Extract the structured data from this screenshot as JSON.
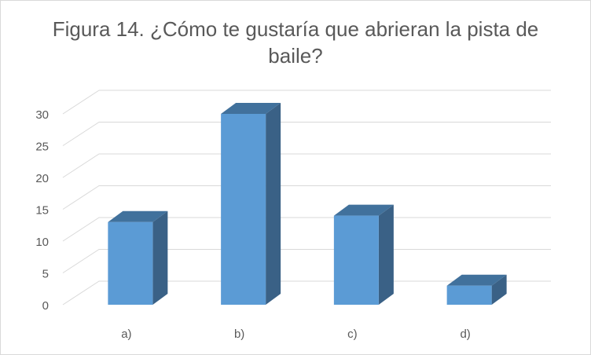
{
  "chart_data": {
    "type": "bar",
    "title": "Figura 14. ¿Cómo te gustaría que abrieran la pista de baile?",
    "categories": [
      "a)",
      "b)",
      "c)",
      "d)"
    ],
    "values": [
      13,
      30,
      14,
      3
    ],
    "ylim": [
      0,
      30
    ],
    "yticks": [
      "0",
      "5",
      "10",
      "15",
      "20",
      "25",
      "30"
    ],
    "grid": true,
    "three_d": true,
    "colors": {
      "bar_front": "#5b9bd5",
      "bar_side": "#3a6186",
      "bar_top": "#41719c",
      "gridline": "#d9d9d9",
      "text": "#595959"
    }
  }
}
